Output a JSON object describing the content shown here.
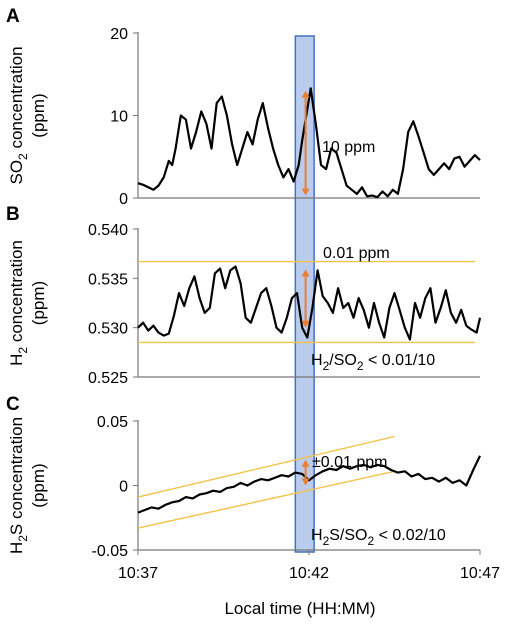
{
  "chart_data": [
    {
      "panel": "A",
      "type": "line",
      "ylabel": "SO₂ concentration (ppm)",
      "ylabel_lines": [
        "SO",
        "2",
        " concentration",
        "(ppm)"
      ],
      "ylim": [
        0,
        20
      ],
      "yticks": [
        "0",
        "10",
        "20"
      ],
      "ytick_values": [
        0,
        10,
        20
      ],
      "grid": false,
      "line_color": "#000000",
      "series": [
        {
          "x": [
            0,
            0.15,
            0.3,
            0.45,
            0.6,
            0.75,
            0.9,
            1.0,
            1.1,
            1.25,
            1.4,
            1.55,
            1.7,
            1.85,
            2.0,
            2.15,
            2.3,
            2.45,
            2.6,
            2.75,
            2.9,
            3.05,
            3.2,
            3.35,
            3.5,
            3.65,
            3.8,
            3.95,
            4.1,
            4.25,
            4.4,
            4.55,
            4.7,
            4.8,
            4.9,
            5.05,
            5.2,
            5.35,
            5.5,
            5.65,
            5.8,
            5.95,
            6.1,
            6.25,
            6.4,
            6.55,
            6.7,
            6.85,
            7.0,
            7.15,
            7.3,
            7.45,
            7.6,
            7.75,
            7.9,
            8.05,
            8.2,
            8.35,
            8.5,
            8.65,
            8.8,
            8.95,
            9.1,
            9.25,
            9.4,
            9.55,
            9.7,
            9.85,
            10.0
          ],
          "y": [
            1.8,
            1.6,
            1.3,
            1.0,
            1.5,
            2.5,
            4.5,
            4.0,
            6.0,
            10.0,
            9.5,
            6.0,
            8.0,
            10.5,
            9.0,
            6.0,
            11.5,
            12.3,
            10.0,
            6.5,
            4.0,
            6.0,
            8.0,
            6.5,
            9.5,
            11.5,
            8.5,
            6.0,
            4.0,
            2.5,
            3.5,
            2.0,
            4.0,
            7.0,
            9.5,
            13.3,
            9.0,
            4.0,
            3.5,
            6.0,
            5.5,
            3.5,
            1.5,
            1.0,
            0.5,
            1.3,
            0.2,
            0.3,
            0.1,
            0.8,
            0.2,
            1.0,
            0.5,
            3.5,
            8.0,
            9.3,
            7.5,
            5.5,
            3.5,
            2.8,
            3.5,
            4.2,
            3.5,
            4.8,
            5.0,
            3.8,
            4.5,
            5.2,
            4.6
          ]
        }
      ]
    },
    {
      "panel": "B",
      "type": "line",
      "ylabel": "H₂ concentration (ppm)",
      "ylabel_lines": [
        "H",
        "2",
        " concentration",
        "(ppm)"
      ],
      "ylim": [
        0.525,
        0.54
      ],
      "yticks": [
        "0.525",
        "0.530",
        "0.535",
        "0.540"
      ],
      "ytick_values": [
        0.525,
        0.53,
        0.535,
        0.54
      ],
      "grid": false,
      "line_color": "#000000",
      "series": [
        {
          "x": [
            0,
            0.15,
            0.3,
            0.45,
            0.6,
            0.75,
            0.9,
            1.05,
            1.2,
            1.35,
            1.5,
            1.65,
            1.8,
            1.95,
            2.1,
            2.25,
            2.4,
            2.55,
            2.7,
            2.85,
            3.0,
            3.15,
            3.3,
            3.45,
            3.6,
            3.75,
            3.9,
            4.05,
            4.2,
            4.35,
            4.5,
            4.65,
            4.8,
            4.95,
            5.1,
            5.25,
            5.4,
            5.55,
            5.7,
            5.85,
            6.0,
            6.15,
            6.3,
            6.45,
            6.6,
            6.75,
            6.9,
            7.05,
            7.2,
            7.35,
            7.5,
            7.65,
            7.8,
            7.95,
            8.1,
            8.25,
            8.4,
            8.55,
            8.7,
            8.85,
            9.0,
            9.15,
            9.3,
            9.45,
            9.6,
            9.75,
            9.9,
            10.0
          ],
          "y": [
            0.53,
            0.5305,
            0.5297,
            0.5302,
            0.5295,
            0.5292,
            0.5294,
            0.5312,
            0.5335,
            0.5322,
            0.534,
            0.5352,
            0.533,
            0.5315,
            0.532,
            0.5355,
            0.536,
            0.534,
            0.5358,
            0.5362,
            0.5345,
            0.531,
            0.5305,
            0.532,
            0.5335,
            0.534,
            0.5322,
            0.53,
            0.5295,
            0.531,
            0.533,
            0.5335,
            0.53,
            0.529,
            0.532,
            0.5358,
            0.5332,
            0.5325,
            0.5315,
            0.534,
            0.532,
            0.5325,
            0.531,
            0.533,
            0.5318,
            0.53,
            0.5325,
            0.5305,
            0.529,
            0.532,
            0.5335,
            0.5318,
            0.53,
            0.5288,
            0.5325,
            0.531,
            0.533,
            0.534,
            0.5305,
            0.532,
            0.5338,
            0.5315,
            0.5305,
            0.5318,
            0.5302,
            0.5298,
            0.5295,
            0.531
          ]
        }
      ]
    },
    {
      "panel": "C",
      "type": "line",
      "ylabel": "H₂S concentration (ppm)",
      "ylabel_lines": [
        "H",
        "2",
        "S concentration",
        "(ppm)"
      ],
      "ylim": [
        -0.05,
        0.05
      ],
      "yticks": [
        "-0.05",
        "0",
        "0.05"
      ],
      "ytick_values": [
        -0.05,
        0,
        0.05
      ],
      "xticks": [
        "10:37",
        "10:42",
        "10:47"
      ],
      "xtick_values": [
        0,
        5,
        10
      ],
      "xlim": [
        0,
        10
      ],
      "xlabel": "Local time (HH:MM)",
      "grid": false,
      "line_color": "#000000",
      "series": [
        {
          "x": [
            0,
            0.2,
            0.4,
            0.6,
            0.8,
            1.0,
            1.2,
            1.4,
            1.6,
            1.8,
            2.0,
            2.2,
            2.4,
            2.6,
            2.8,
            3.0,
            3.2,
            3.4,
            3.6,
            3.8,
            4.0,
            4.2,
            4.4,
            4.6,
            4.8,
            5.0,
            5.2,
            5.4,
            5.6,
            5.8,
            6.0,
            6.2,
            6.4,
            6.6,
            6.8,
            7.0,
            7.2,
            7.4,
            7.6,
            7.8,
            8.0,
            8.2,
            8.4,
            8.6,
            8.8,
            9.0,
            9.2,
            9.4,
            9.6,
            9.8,
            10.0
          ],
          "y": [
            -0.021,
            -0.019,
            -0.017,
            -0.018,
            -0.015,
            -0.013,
            -0.012,
            -0.009,
            -0.01,
            -0.007,
            -0.006,
            -0.004,
            -0.005,
            -0.002,
            -0.001,
            0.002,
            0.0,
            0.003,
            0.005,
            0.004,
            0.006,
            0.008,
            0.007,
            0.01,
            0.009,
            0.004,
            0.008,
            0.011,
            0.013,
            0.012,
            0.015,
            0.013,
            0.015,
            0.016,
            0.014,
            0.016,
            0.015,
            0.012,
            0.01,
            0.011,
            0.007,
            0.009,
            0.005,
            0.006,
            0.003,
            0.006,
            0.002,
            0.004,
            0.0,
            0.012,
            0.023
          ]
        }
      ]
    }
  ],
  "shared": {
    "highlight_x_range": [
      4.6,
      5.15
    ],
    "highlight_fill": "#aec3ea",
    "highlight_stroke": "#4472c4",
    "arrow_color": "#ed7d31",
    "band_color": "#f2c24a"
  },
  "annotations": {
    "panel_a": {
      "arrow": {
        "x": 4.9,
        "y_from": 0.3,
        "y_to": 13.0
      },
      "text": "10 ppm"
    },
    "panel_b": {
      "arrow": {
        "x": 4.9,
        "y_from": 0.53,
        "y_to": 0.5359
      },
      "band_lines_y": [
        0.5367,
        0.5285
      ],
      "text_top": "0.01 ppm",
      "ratio_text": [
        "H",
        "2",
        "/SO",
        "2",
        " < 0.01/10"
      ]
    },
    "panel_c": {
      "arrow": {
        "x": 4.9,
        "y_from": 0.0,
        "y_to": 0.02
      },
      "band_upper": {
        "x": [
          0,
          7.5
        ],
        "y": [
          -0.009,
          0.038
        ]
      },
      "band_lower": {
        "x": [
          0,
          7.5
        ],
        "y": [
          -0.033,
          0.011
        ]
      },
      "text": "±0.01 ppm",
      "ratio_text": [
        "H",
        "2",
        "S/SO",
        "2",
        " < 0.02/10"
      ]
    }
  }
}
